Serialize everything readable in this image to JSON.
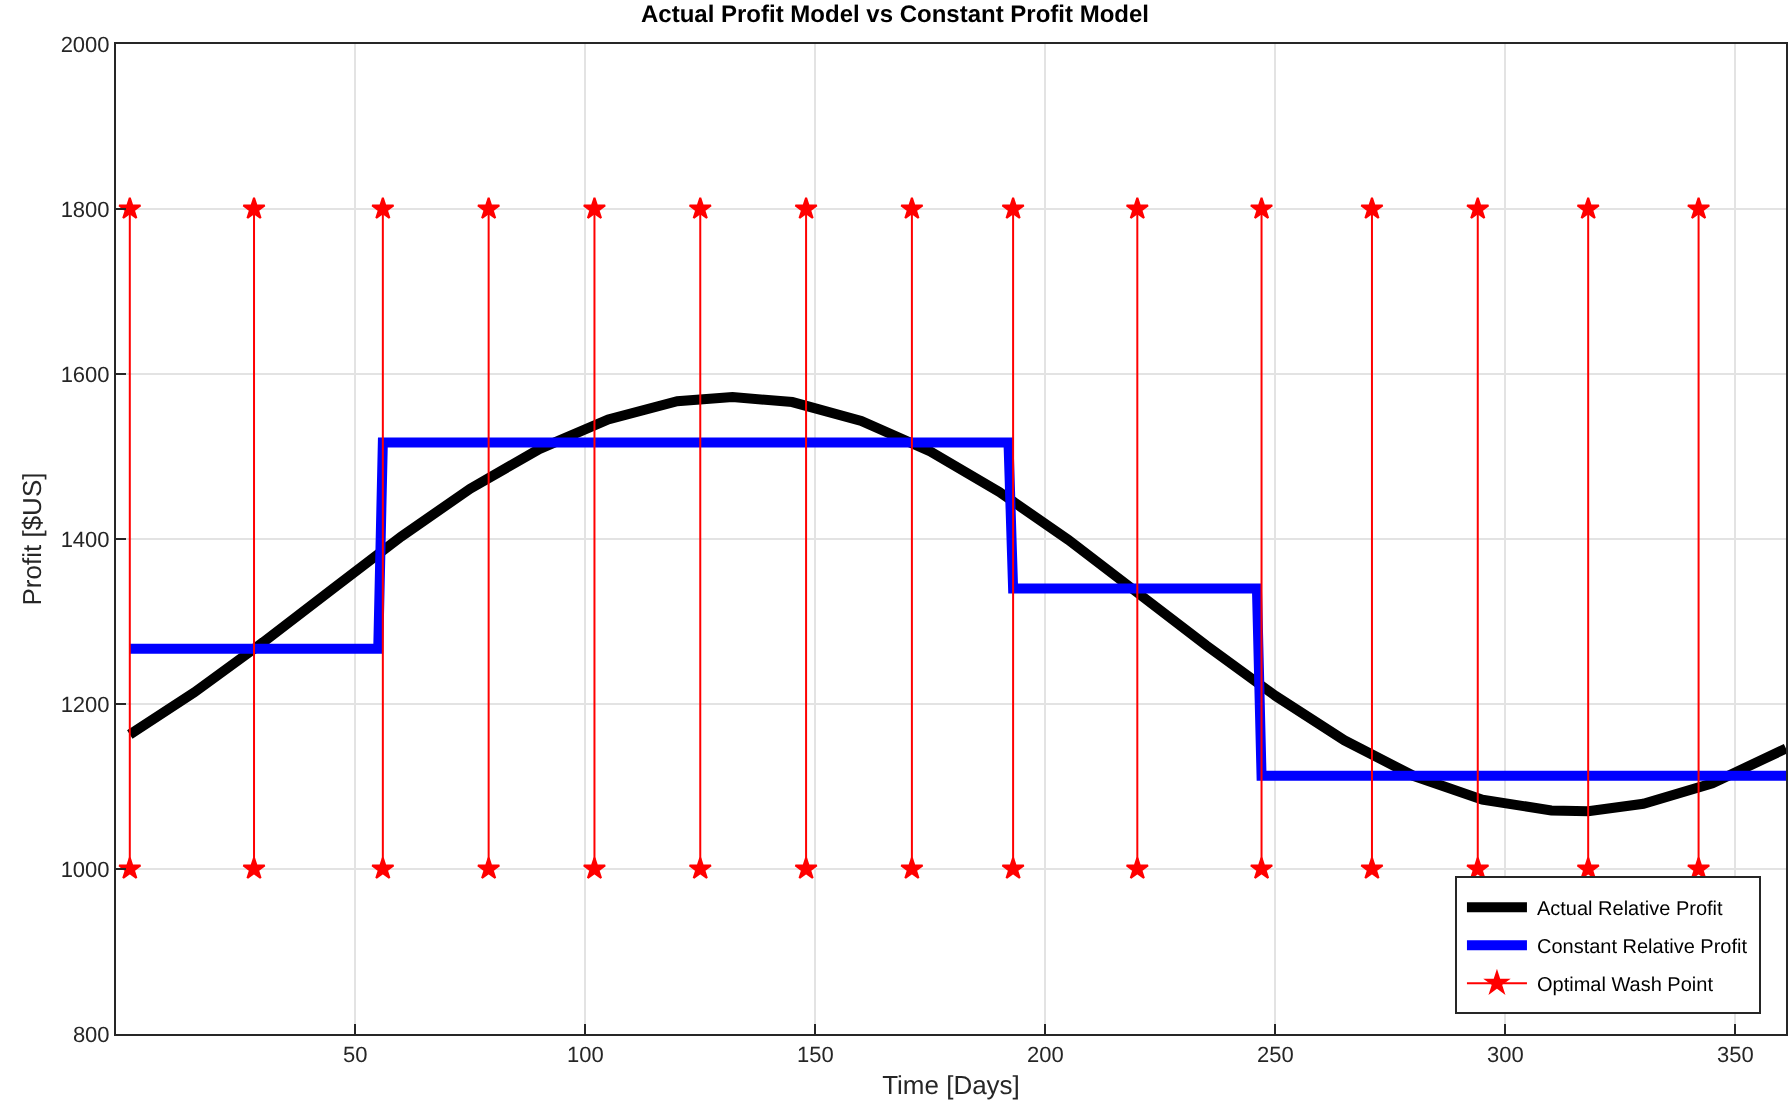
{
  "chart_data": {
    "type": "line",
    "title": "Actual Profit Model vs Constant Profit Model",
    "xlabel": "Time [Days]",
    "ylabel": "Profit [$US]",
    "xlim": [
      -2,
      361
    ],
    "xticks": [
      50,
      100,
      150,
      200,
      250,
      300,
      350
    ],
    "ylim": [
      800,
      2000
    ],
    "yticks": [
      800,
      1000,
      1200,
      1400,
      1600,
      1800,
      2000
    ],
    "grid": true,
    "legend": "bottom right",
    "series": [
      {
        "name": "Actual Relative Profit",
        "color": "#000000",
        "marker": "none",
        "x": [
          1,
          15,
          30,
          45,
          60,
          75,
          90,
          105,
          120,
          132,
          145,
          160,
          175,
          190,
          205,
          220,
          235,
          250,
          265,
          280,
          295,
          310,
          318,
          330,
          345,
          361
        ],
        "values": [
          1163,
          1214,
          1275,
          1339,
          1403,
          1461,
          1509,
          1545,
          1567,
          1572,
          1566,
          1543,
          1506,
          1457,
          1399,
          1335,
          1271,
          1210,
          1156,
          1113,
          1084,
          1071,
          1070,
          1079,
          1104,
          1146
        ]
      },
      {
        "name": "Constant Relative Profit",
        "color": "#0000ff",
        "marker": "none",
        "x": [
          1,
          55,
          56,
          192,
          193,
          246,
          247,
          361
        ],
        "values": [
          1267,
          1267,
          1517,
          1517,
          1340,
          1340,
          1113,
          1113
        ]
      },
      {
        "name": "Optimal Wash Point",
        "color": "#ff0000",
        "marker": "star",
        "x": [
          1,
          1,
          null,
          28,
          28,
          null,
          56,
          56,
          null,
          79,
          79,
          null,
          102,
          102,
          null,
          125,
          125,
          null,
          148,
          148,
          null,
          171,
          171,
          null,
          193,
          193,
          null,
          220,
          220,
          null,
          247,
          247,
          null,
          271,
          271,
          null,
          294,
          294,
          null,
          318,
          318,
          null,
          342,
          342
        ],
        "values": [
          1000,
          1800,
          null,
          1000,
          1800,
          null,
          1000,
          1800,
          null,
          1000,
          1800,
          null,
          1000,
          1800,
          null,
          1000,
          1800,
          null,
          1000,
          1800,
          null,
          1000,
          1800,
          null,
          1000,
          1800,
          null,
          1000,
          1800,
          null,
          1000,
          1800,
          null,
          1000,
          1800,
          null,
          1000,
          1800,
          null,
          1000,
          1800,
          null,
          1000,
          1800
        ]
      }
    ]
  }
}
